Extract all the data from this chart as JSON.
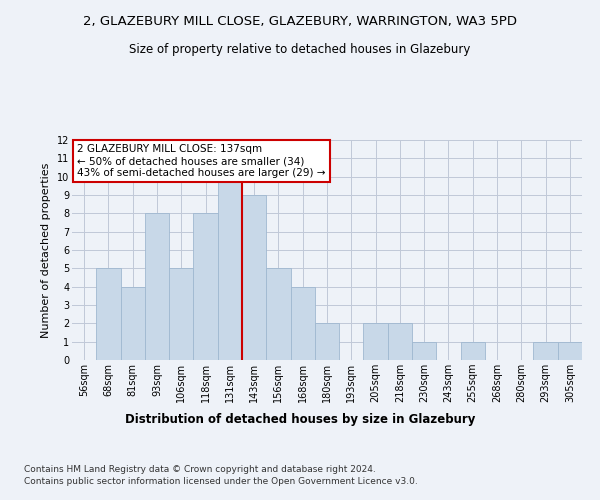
{
  "title_line1": "2, GLAZEBURY MILL CLOSE, GLAZEBURY, WARRINGTON, WA3 5PD",
  "title_line2": "Size of property relative to detached houses in Glazebury",
  "xlabel": "Distribution of detached houses by size in Glazebury",
  "ylabel": "Number of detached properties",
  "categories": [
    "56sqm",
    "68sqm",
    "81sqm",
    "93sqm",
    "106sqm",
    "118sqm",
    "131sqm",
    "143sqm",
    "156sqm",
    "168sqm",
    "180sqm",
    "193sqm",
    "205sqm",
    "218sqm",
    "230sqm",
    "243sqm",
    "255sqm",
    "268sqm",
    "280sqm",
    "293sqm",
    "305sqm"
  ],
  "values": [
    0,
    5,
    4,
    8,
    5,
    8,
    10,
    9,
    5,
    4,
    2,
    0,
    2,
    2,
    1,
    0,
    1,
    0,
    0,
    1,
    1
  ],
  "bar_color": "#c8d8e8",
  "bar_edge_color": "#a0b8d0",
  "annotation_line1": "2 GLAZEBURY MILL CLOSE: 137sqm",
  "annotation_line2": "← 50% of detached houses are smaller (34)",
  "annotation_line3": "43% of semi-detached houses are larger (29) →",
  "annotation_box_color": "#ffffff",
  "annotation_box_edge_color": "#cc0000",
  "vline_x": 6.5,
  "vline_color": "#cc0000",
  "ylim": [
    0,
    12
  ],
  "yticks": [
    0,
    1,
    2,
    3,
    4,
    5,
    6,
    7,
    8,
    9,
    10,
    11,
    12
  ],
  "grid_color": "#c0c8d8",
  "footer_line1": "Contains HM Land Registry data © Crown copyright and database right 2024.",
  "footer_line2": "Contains public sector information licensed under the Open Government Licence v3.0.",
  "background_color": "#eef2f8",
  "title1_fontsize": 9.5,
  "title2_fontsize": 8.5,
  "xlabel_fontsize": 8.5,
  "ylabel_fontsize": 8,
  "tick_fontsize": 7,
  "annotation_fontsize": 7.5,
  "footer_fontsize": 6.5
}
